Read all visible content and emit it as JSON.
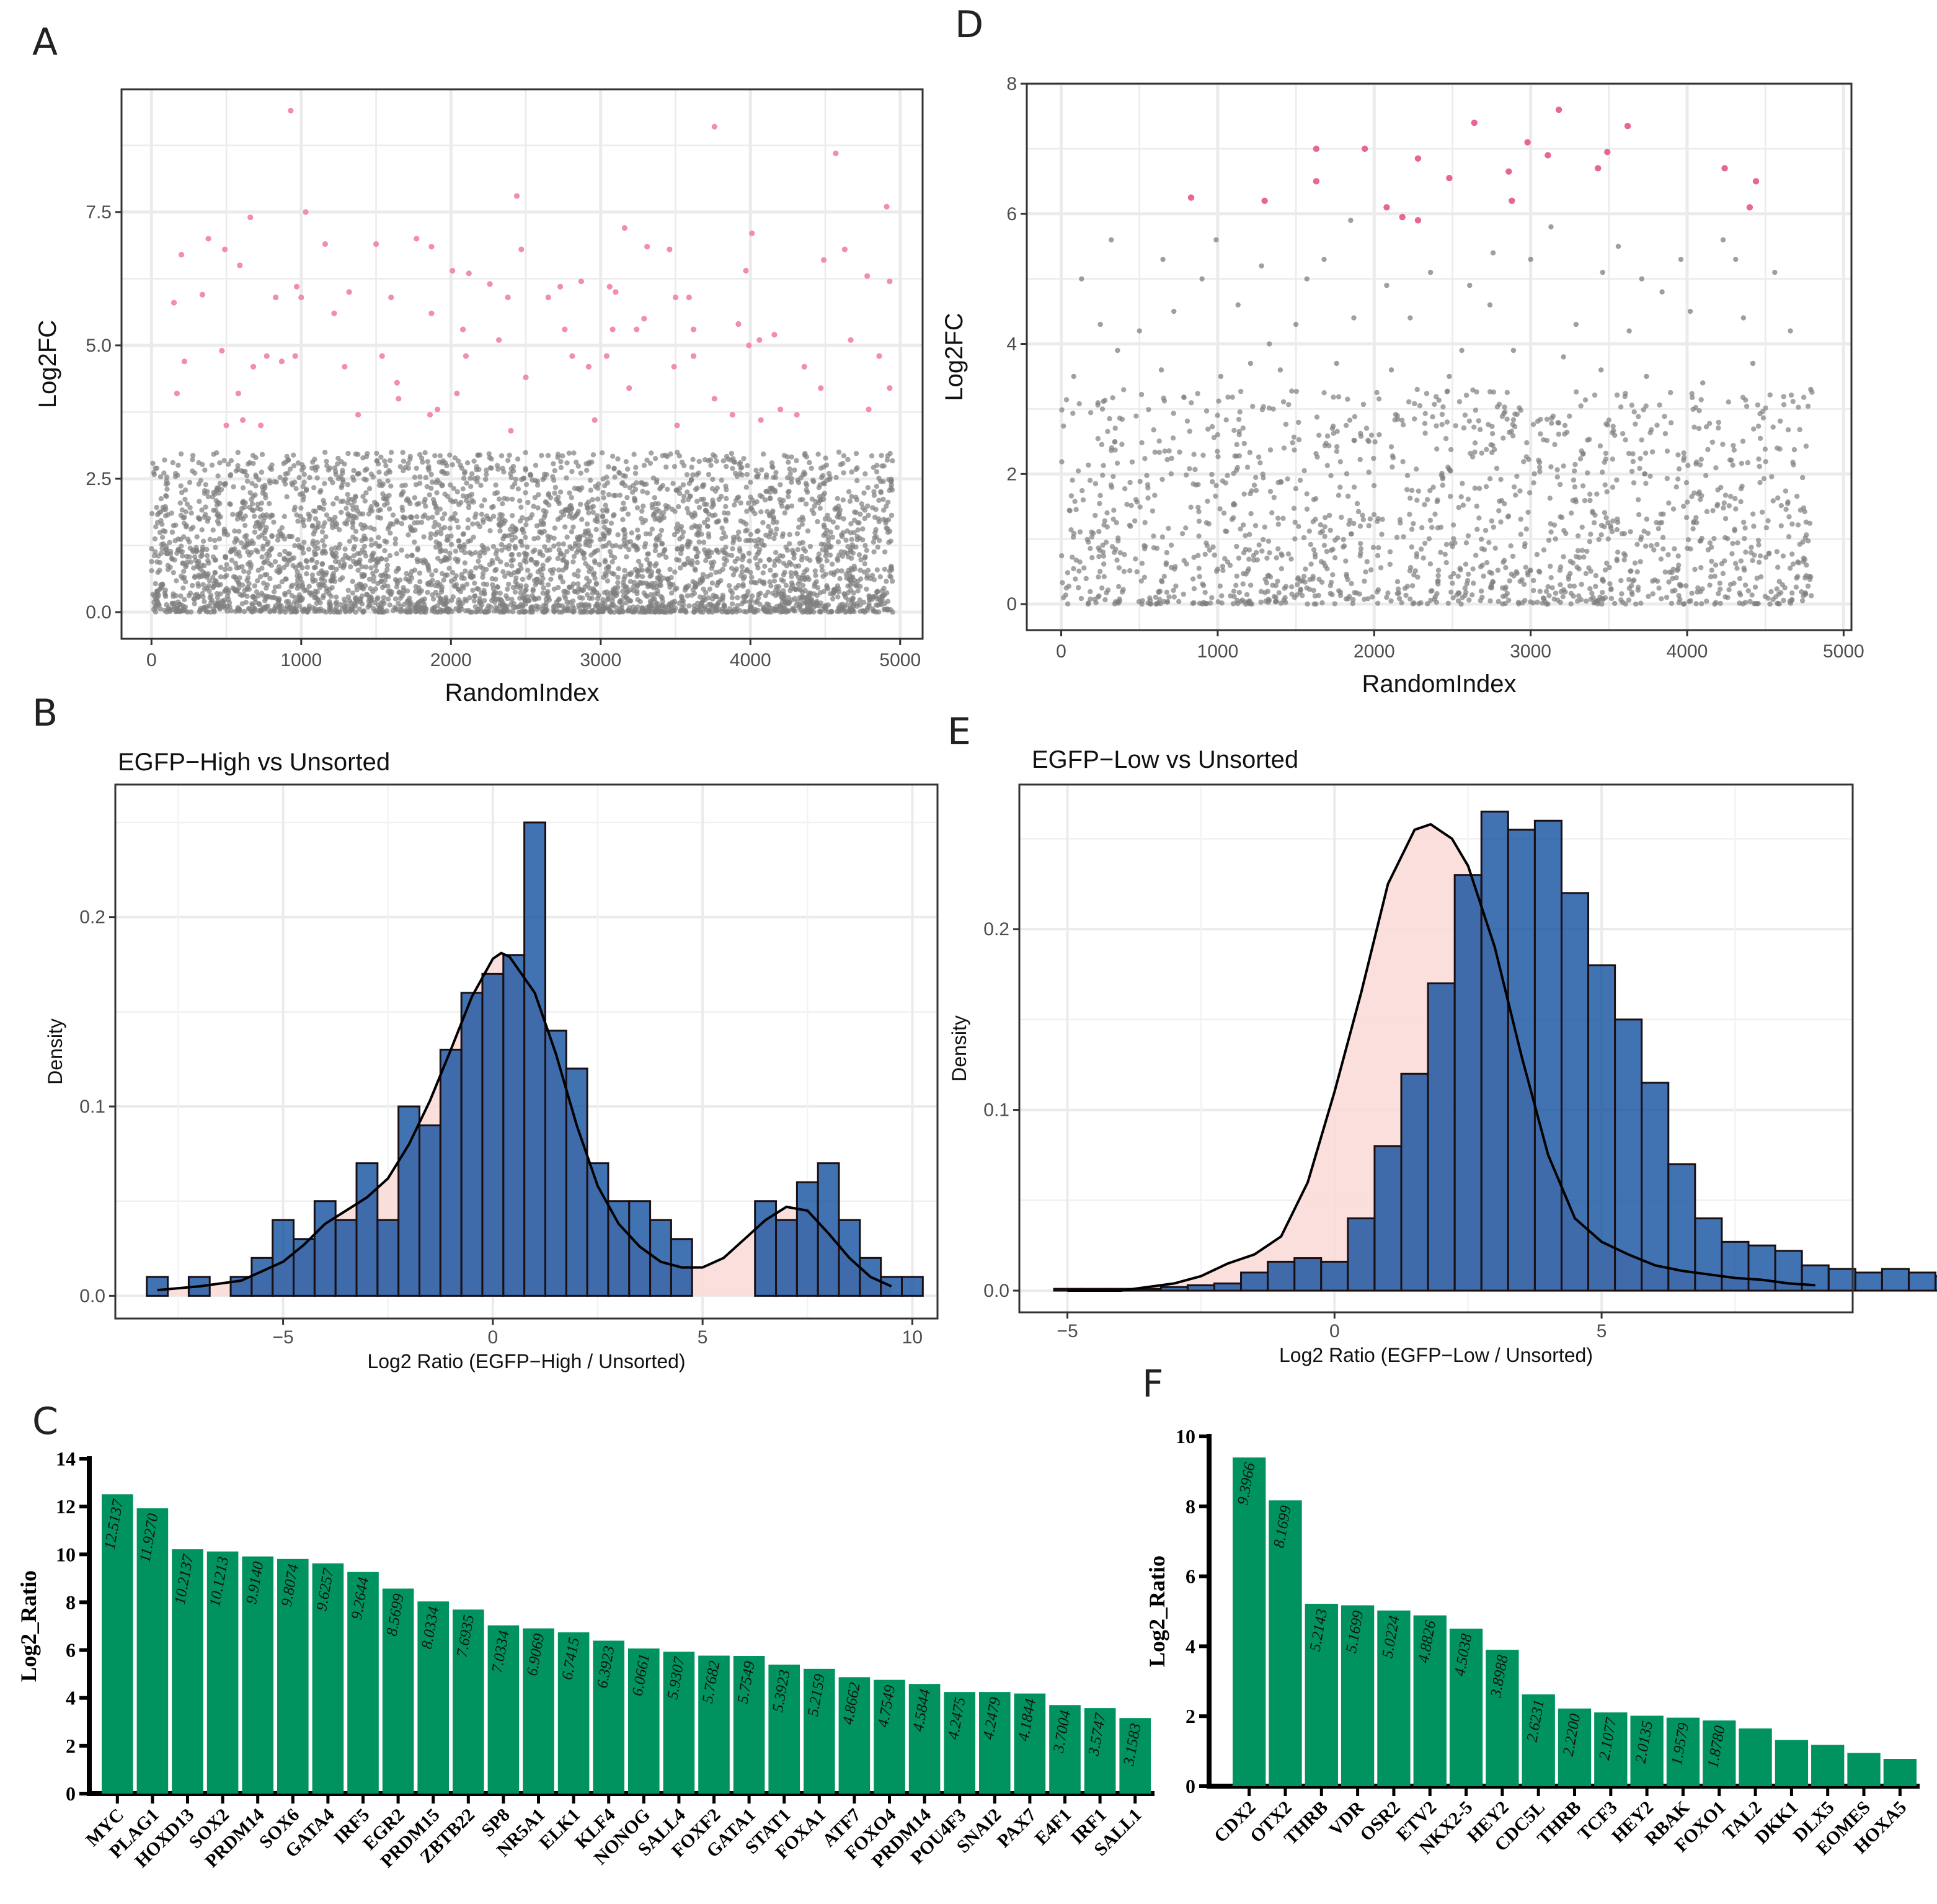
{
  "chart_data": [
    {
      "id": "A",
      "type": "scatter",
      "panel_label": "A",
      "xlabel": "RandomIndex",
      "ylabel": "Log2FC",
      "xlim": [
        -200,
        5150
      ],
      "ylim": [
        -0.5,
        9.8
      ],
      "xticks": [
        0,
        1000,
        2000,
        3000,
        4000,
        5000
      ],
      "yticks": [
        0.0,
        2.5,
        5.0,
        7.5
      ],
      "ytick_labels": [
        "0.0",
        "2.5",
        "5.0",
        "7.5"
      ],
      "grid": true,
      "background_points": {
        "count": 3800,
        "x_range": [
          0,
          4950
        ],
        "y_range": [
          0,
          3.0
        ],
        "color": "#7f7f7f"
      },
      "highlight_color": "#f28cb5",
      "highlight_points": [
        [
          930,
          9.4
        ],
        [
          3760,
          9.1
        ],
        [
          4570,
          8.6
        ],
        [
          2440,
          7.8
        ],
        [
          4910,
          7.6
        ],
        [
          1030,
          7.5
        ],
        [
          660,
          7.4
        ],
        [
          3160,
          7.2
        ],
        [
          4010,
          7.1
        ],
        [
          1770,
          7.0
        ],
        [
          380,
          7.0
        ],
        [
          1500,
          6.9
        ],
        [
          490,
          6.8
        ],
        [
          1160,
          6.9
        ],
        [
          1870,
          6.85
        ],
        [
          2120,
          6.35
        ],
        [
          2260,
          6.15
        ],
        [
          2470,
          6.8
        ],
        [
          2730,
          6.1
        ],
        [
          2870,
          6.2
        ],
        [
          3060,
          6.1
        ],
        [
          3100,
          6.0
        ],
        [
          3310,
          6.85
        ],
        [
          3460,
          6.8
        ],
        [
          4490,
          6.6
        ],
        [
          4630,
          6.8
        ],
        [
          4780,
          6.3
        ],
        [
          4930,
          6.2
        ],
        [
          200,
          6.7
        ],
        [
          340,
          5.95
        ],
        [
          590,
          6.5
        ],
        [
          830,
          5.9
        ],
        [
          970,
          6.1
        ],
        [
          1320,
          6.0
        ],
        [
          1600,
          5.9
        ],
        [
          2010,
          6.4
        ],
        [
          2380,
          5.9
        ],
        [
          2650,
          5.9
        ],
        [
          3290,
          5.5
        ],
        [
          3500,
          5.9
        ],
        [
          3590,
          5.9
        ],
        [
          3970,
          6.4
        ],
        [
          150,
          5.8
        ],
        [
          1000,
          5.9
        ],
        [
          1220,
          5.6
        ],
        [
          1870,
          5.6
        ],
        [
          2080,
          5.3
        ],
        [
          2320,
          5.1
        ],
        [
          2760,
          5.3
        ],
        [
          3080,
          5.3
        ],
        [
          3240,
          5.3
        ],
        [
          3620,
          5.3
        ],
        [
          3920,
          5.4
        ],
        [
          4160,
          5.2
        ],
        [
          4670,
          5.1
        ],
        [
          220,
          4.7
        ],
        [
          470,
          4.9
        ],
        [
          680,
          4.6
        ],
        [
          770,
          4.8
        ],
        [
          870,
          4.7
        ],
        [
          960,
          4.8
        ],
        [
          1290,
          4.6
        ],
        [
          1540,
          4.8
        ],
        [
          1640,
          4.3
        ],
        [
          2100,
          4.8
        ],
        [
          2810,
          4.8
        ],
        [
          3040,
          4.8
        ],
        [
          3490,
          4.6
        ],
        [
          3620,
          4.8
        ],
        [
          3990,
          5.0
        ],
        [
          4060,
          5.1
        ],
        [
          4360,
          4.6
        ],
        [
          4860,
          4.8
        ],
        [
          170,
          4.1
        ],
        [
          580,
          4.1
        ],
        [
          1650,
          4.0
        ],
        [
          1910,
          3.8
        ],
        [
          2040,
          4.1
        ],
        [
          2500,
          4.4
        ],
        [
          2920,
          4.6
        ],
        [
          3190,
          4.2
        ],
        [
          3760,
          4.0
        ],
        [
          4200,
          3.8
        ],
        [
          4470,
          4.2
        ],
        [
          4930,
          4.2
        ],
        [
          500,
          3.5
        ],
        [
          610,
          3.6
        ],
        [
          730,
          3.5
        ],
        [
          1380,
          3.7
        ],
        [
          1860,
          3.7
        ],
        [
          2400,
          3.4
        ],
        [
          2960,
          3.6
        ],
        [
          3510,
          3.5
        ],
        [
          3880,
          3.7
        ],
        [
          4070,
          3.6
        ],
        [
          4310,
          3.7
        ],
        [
          4790,
          3.8
        ]
      ]
    },
    {
      "id": "D",
      "type": "scatter",
      "panel_label": "D",
      "xlabel": "RandomIndex",
      "ylabel": "Log2FC",
      "xlim": [
        -220,
        5050
      ],
      "ylim": [
        -0.4,
        8.0
      ],
      "xticks": [
        0,
        1000,
        2000,
        3000,
        4000,
        5000
      ],
      "yticks": [
        0,
        2,
        4,
        6,
        8
      ],
      "ytick_labels": [
        "0",
        "2",
        "4",
        "6",
        "8"
      ],
      "grid": true,
      "background_points": {
        "count": 1500,
        "x_range": [
          0,
          4800
        ],
        "y_range": [
          0,
          3.3
        ],
        "color": "#7f7f7f"
      },
      "background_sparse_points": [
        [
          130,
          5.0
        ],
        [
          320,
          5.6
        ],
        [
          650,
          5.3
        ],
        [
          900,
          5.0
        ],
        [
          990,
          5.6
        ],
        [
          1280,
          5.2
        ],
        [
          1570,
          5.0
        ],
        [
          1680,
          5.3
        ],
        [
          1850,
          5.9
        ],
        [
          2080,
          4.9
        ],
        [
          2360,
          5.1
        ],
        [
          2610,
          4.9
        ],
        [
          2760,
          5.4
        ],
        [
          3000,
          5.3
        ],
        [
          3130,
          5.8
        ],
        [
          3460,
          5.1
        ],
        [
          3560,
          5.5
        ],
        [
          3710,
          5.0
        ],
        [
          3960,
          5.3
        ],
        [
          4230,
          5.6
        ],
        [
          4310,
          5.3
        ],
        [
          4560,
          5.1
        ],
        [
          250,
          4.3
        ],
        [
          500,
          4.2
        ],
        [
          720,
          4.5
        ],
        [
          1130,
          4.6
        ],
        [
          1330,
          4.0
        ],
        [
          1500,
          4.3
        ],
        [
          1870,
          4.4
        ],
        [
          2230,
          4.4
        ],
        [
          2560,
          3.9
        ],
        [
          2740,
          4.6
        ],
        [
          3290,
          4.3
        ],
        [
          3630,
          4.2
        ],
        [
          3840,
          4.8
        ],
        [
          4020,
          4.5
        ],
        [
          4360,
          4.4
        ],
        [
          4660,
          4.2
        ],
        [
          80,
          3.5
        ],
        [
          360,
          3.9
        ],
        [
          640,
          3.6
        ],
        [
          1020,
          3.5
        ],
        [
          1210,
          3.7
        ],
        [
          1400,
          3.6
        ],
        [
          1760,
          3.7
        ],
        [
          2110,
          3.6
        ],
        [
          2480,
          3.5
        ],
        [
          2890,
          3.9
        ],
        [
          3210,
          3.8
        ],
        [
          3450,
          3.6
        ],
        [
          3740,
          3.5
        ],
        [
          4100,
          3.4
        ],
        [
          4420,
          3.7
        ],
        [
          4790,
          3.3
        ]
      ],
      "highlight_color": "#e8659a",
      "highlight_points": [
        [
          3180,
          7.6
        ],
        [
          2640,
          7.4
        ],
        [
          3620,
          7.35
        ],
        [
          1630,
          7.0
        ],
        [
          1940,
          7.0
        ],
        [
          2980,
          7.1
        ],
        [
          3110,
          6.9
        ],
        [
          3490,
          6.95
        ],
        [
          2280,
          6.85
        ],
        [
          4240,
          6.7
        ],
        [
          2860,
          6.65
        ],
        [
          3430,
          6.7
        ],
        [
          1630,
          6.5
        ],
        [
          2480,
          6.55
        ],
        [
          4440,
          6.5
        ],
        [
          830,
          6.25
        ],
        [
          1300,
          6.2
        ],
        [
          2880,
          6.2
        ],
        [
          2080,
          6.1
        ],
        [
          4400,
          6.1
        ],
        [
          2180,
          5.95
        ],
        [
          2280,
          5.9
        ]
      ]
    },
    {
      "id": "B",
      "type": "bar",
      "subtype": "histogram-density",
      "panel_label": "B",
      "title": "EGFP−High vs Unsorted",
      "xlabel": "Log2 Ratio (EGFP−High / Unsorted)",
      "ylabel": "Density",
      "xlim": [
        -9.0,
        10.6
      ],
      "ylim": [
        -0.012,
        0.27
      ],
      "xticks": [
        -5,
        0,
        5,
        10
      ],
      "xtick_labels": [
        "−5",
        "0",
        "5",
        "10"
      ],
      "yticks": [
        0.0,
        0.1,
        0.2
      ],
      "ytick_labels": [
        "0.0",
        "0.1",
        "0.2"
      ],
      "grid": true,
      "bar_color": "#0b4a9c",
      "fill_color": "#fadbd8",
      "bin_start": -8.25,
      "bin_width": 0.5,
      "bin_values": [
        0.01,
        0.0,
        0.01,
        0.0,
        0.01,
        0.02,
        0.04,
        0.03,
        0.05,
        0.04,
        0.07,
        0.04,
        0.1,
        0.09,
        0.13,
        0.16,
        0.17,
        0.18,
        0.25,
        0.14,
        0.12,
        0.07,
        0.05,
        0.05,
        0.04,
        0.03,
        0.0,
        0.0,
        0.0,
        0.05,
        0.04,
        0.06,
        0.07,
        0.04,
        0.02,
        0.01,
        0.01
      ],
      "density_curve": [
        [
          -8.0,
          0.003
        ],
        [
          -7.0,
          0.005
        ],
        [
          -6.0,
          0.008
        ],
        [
          -5.0,
          0.018
        ],
        [
          -4.5,
          0.027
        ],
        [
          -4.0,
          0.038
        ],
        [
          -3.5,
          0.045
        ],
        [
          -3.0,
          0.052
        ],
        [
          -2.5,
          0.062
        ],
        [
          -2.0,
          0.08
        ],
        [
          -1.5,
          0.103
        ],
        [
          -1.0,
          0.13
        ],
        [
          -0.5,
          0.158
        ],
        [
          0.0,
          0.178
        ],
        [
          0.2,
          0.181
        ],
        [
          0.4,
          0.179
        ],
        [
          1.0,
          0.16
        ],
        [
          1.5,
          0.128
        ],
        [
          2.0,
          0.09
        ],
        [
          2.5,
          0.058
        ],
        [
          3.0,
          0.038
        ],
        [
          3.5,
          0.026
        ],
        [
          4.0,
          0.018
        ],
        [
          4.5,
          0.015
        ],
        [
          5.0,
          0.015
        ],
        [
          5.5,
          0.02
        ],
        [
          6.0,
          0.03
        ],
        [
          6.5,
          0.04
        ],
        [
          7.0,
          0.047
        ],
        [
          7.5,
          0.045
        ],
        [
          8.0,
          0.033
        ],
        [
          8.5,
          0.02
        ],
        [
          9.0,
          0.01
        ],
        [
          9.5,
          0.005
        ]
      ]
    },
    {
      "id": "E",
      "type": "bar",
      "subtype": "histogram-density",
      "panel_label": "E",
      "title": "EGFP−Low vs Unsorted",
      "xlabel": "Log2 Ratio (EGFP−Low / Unsorted)",
      "ylabel": "Density",
      "xlim": [
        -5.9,
        9.7
      ],
      "ylim": [
        -0.012,
        0.28
      ],
      "xticks": [
        -5,
        0,
        5
      ],
      "xtick_labels": [
        "−5",
        "0",
        "5"
      ],
      "yticks": [
        0.0,
        0.1,
        0.2
      ],
      "ytick_labels": [
        "0.0",
        "0.1",
        "0.2"
      ],
      "grid": true,
      "bar_color": "#0b4a9c",
      "fill_color": "#fadbd8",
      "bin_start": -5.25,
      "bin_width": 0.5,
      "bin_values": [
        0.001,
        0.001,
        0.001,
        0.001,
        0.002,
        0.003,
        0.004,
        0.01,
        0.016,
        0.018,
        0.016,
        0.04,
        0.08,
        0.12,
        0.17,
        0.23,
        0.265,
        0.255,
        0.26,
        0.22,
        0.18,
        0.15,
        0.115,
        0.07,
        0.04,
        0.027,
        0.025,
        0.022,
        0.014,
        0.012,
        0.01,
        0.012,
        0.01,
        0.008,
        0.006,
        0.005
      ],
      "density_curve": [
        [
          -5.0,
          0.0
        ],
        [
          -4.0,
          0.0
        ],
        [
          -3.5,
          0.002
        ],
        [
          -3.0,
          0.004
        ],
        [
          -2.5,
          0.008
        ],
        [
          -2.0,
          0.015
        ],
        [
          -1.5,
          0.02
        ],
        [
          -1.0,
          0.03
        ],
        [
          -0.5,
          0.06
        ],
        [
          0.0,
          0.11
        ],
        [
          0.5,
          0.165
        ],
        [
          1.0,
          0.225
        ],
        [
          1.5,
          0.255
        ],
        [
          1.8,
          0.258
        ],
        [
          2.2,
          0.25
        ],
        [
          2.5,
          0.235
        ],
        [
          3.0,
          0.19
        ],
        [
          3.5,
          0.13
        ],
        [
          4.0,
          0.075
        ],
        [
          4.5,
          0.04
        ],
        [
          5.0,
          0.027
        ],
        [
          5.5,
          0.02
        ],
        [
          6.0,
          0.014
        ],
        [
          6.5,
          0.011
        ],
        [
          7.0,
          0.009
        ],
        [
          7.5,
          0.007
        ],
        [
          8.0,
          0.006
        ],
        [
          8.5,
          0.004
        ],
        [
          9.0,
          0.003
        ]
      ]
    },
    {
      "id": "C",
      "type": "bar",
      "panel_label": "C",
      "ylabel": "Log2_Ratio",
      "ylim": [
        0,
        14
      ],
      "yticks": [
        0,
        2,
        4,
        6,
        8,
        10,
        12,
        14
      ],
      "ytick_labels": [
        "0",
        "2",
        "4",
        "6",
        "8",
        "10",
        "12",
        "14"
      ],
      "bar_color": "#00935f",
      "categories": [
        "MYC",
        "PLAG1",
        "HOXD13",
        "SOX2",
        "PRDM14",
        "SOX6",
        "GATA4",
        "IRF5",
        "EGR2",
        "PRDM15",
        "ZBTB22",
        "SP8",
        "NR5A1",
        "ELK1",
        "KLF4",
        "NONOG",
        "SALL4",
        "FOXF2",
        "GATA1",
        "STAT1",
        "FOXA1",
        "ATF7",
        "FOXO4",
        "PRDM14",
        "POU4F3",
        "SNAI2",
        "PAX7",
        "E4F1",
        "IRF1",
        "SALL1"
      ],
      "values": [
        12.5137,
        11.927,
        10.2137,
        10.1213,
        9.914,
        9.8074,
        9.6257,
        9.2644,
        8.5699,
        8.0334,
        7.6935,
        7.0334,
        6.9069,
        6.7415,
        6.3923,
        6.0661,
        5.9307,
        5.7682,
        5.7549,
        5.3923,
        5.2159,
        4.8662,
        4.7549,
        4.5844,
        4.2475,
        4.2479,
        4.1844,
        3.7004,
        3.5747,
        3.1583
      ],
      "value_labels": [
        "12.5137",
        "11.9270",
        "10.2137",
        "10.1213",
        "9.9140",
        "9.8074",
        "9.6257",
        "9.2644",
        "8.5699",
        "8.0334",
        "7.6935",
        "7.0334",
        "6.9069",
        "6.7415",
        "6.3923",
        "6.0661",
        "5.9307",
        "5.7682",
        "5.7549",
        "5.3923",
        "5.2159",
        "4.8662",
        "4.7549",
        "4.5844",
        "4.2475",
        "4.2479",
        "4.1844",
        "3.7004",
        "3.5747",
        "3.1583"
      ]
    },
    {
      "id": "F",
      "type": "bar",
      "panel_label": "F",
      "ylabel": "Log2_Ratio",
      "ylim": [
        0,
        10
      ],
      "yticks": [
        0,
        2,
        4,
        6,
        8,
        10
      ],
      "ytick_labels": [
        "0",
        "2",
        "4",
        "6",
        "8",
        "10"
      ],
      "bar_color": "#00935f",
      "categories": [
        "CDX2",
        "OTX2",
        "THRB",
        "VDR",
        "OSR2",
        "ETV2",
        "NKX2-5",
        "HEY2",
        "CDC5L",
        "THRB",
        "TCF3",
        "HEY2",
        "RBAK",
        "FOXO1",
        "TAL2",
        "DKK1",
        "DLX5",
        "EOMES",
        "HOXA5"
      ],
      "values": [
        9.3966,
        8.1699,
        5.2143,
        5.1699,
        5.0224,
        4.8826,
        4.5038,
        3.8988,
        2.6231,
        2.22,
        2.1077,
        2.0135,
        1.9579,
        1.878,
        1.65,
        1.32,
        1.18,
        0.95,
        0.78
      ],
      "value_labels": [
        "9.3966",
        "8.1699",
        "5.2143",
        "5.1699",
        "5.0224",
        "4.8826",
        "4.5038",
        "3.8988",
        "2.6231",
        "2.2200",
        "2.1077",
        "2.0135",
        "1.9579",
        "1.8780",
        "",
        "",
        "",
        "",
        ""
      ]
    }
  ]
}
